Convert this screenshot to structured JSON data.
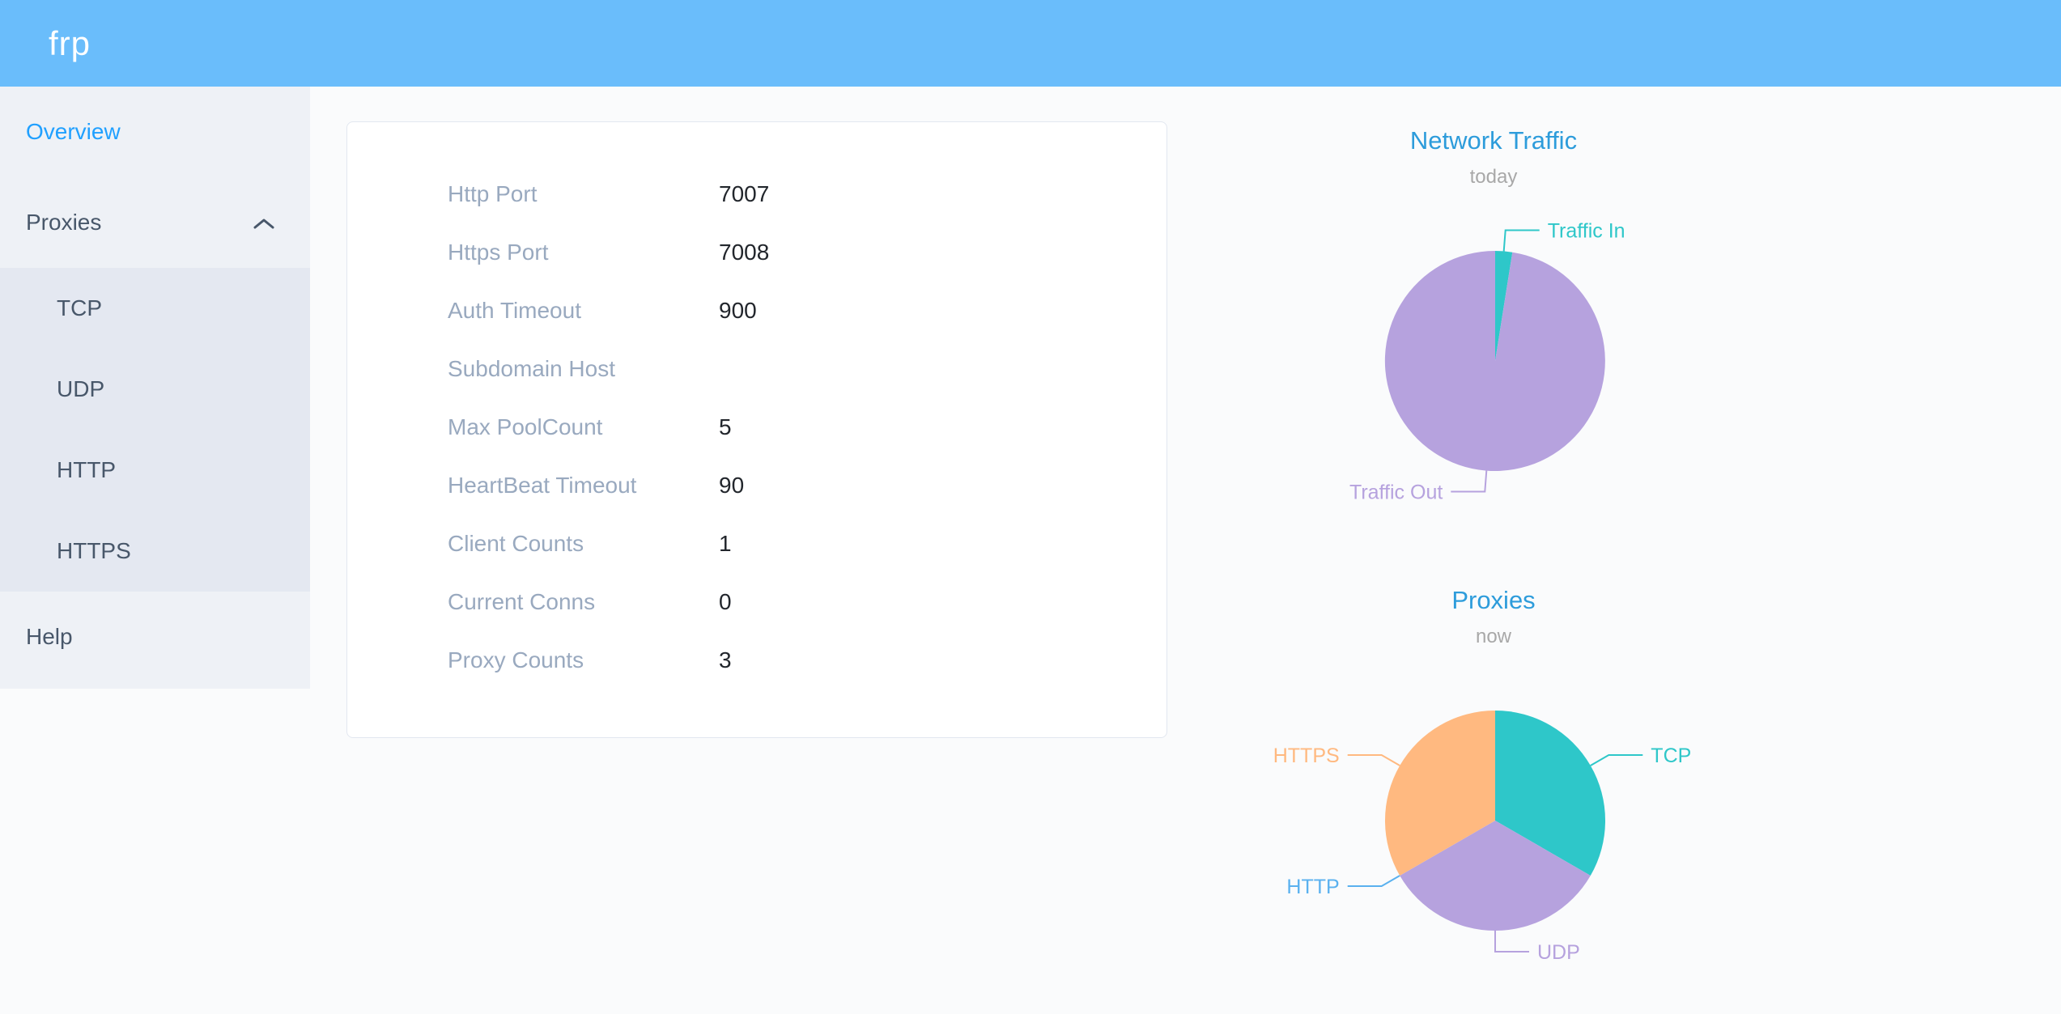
{
  "header": {
    "logo": "frp"
  },
  "sidebar": {
    "items": [
      {
        "label": "Overview",
        "active": true
      },
      {
        "label": "Proxies",
        "expanded": true,
        "children": [
          {
            "label": "TCP"
          },
          {
            "label": "UDP"
          },
          {
            "label": "HTTP"
          },
          {
            "label": "HTTPS"
          }
        ]
      },
      {
        "label": "Help"
      }
    ]
  },
  "overview": {
    "rows": [
      {
        "label": "Http Port",
        "value": "7007"
      },
      {
        "label": "Https Port",
        "value": "7008"
      },
      {
        "label": "Auth Timeout",
        "value": "900"
      },
      {
        "label": "Subdomain Host",
        "value": ""
      },
      {
        "label": "Max PoolCount",
        "value": "5"
      },
      {
        "label": "HeartBeat Timeout",
        "value": "90"
      },
      {
        "label": "Client Counts",
        "value": "1"
      },
      {
        "label": "Current Conns",
        "value": "0"
      },
      {
        "label": "Proxy Counts",
        "value": "3"
      }
    ]
  },
  "chart_data": [
    {
      "type": "pie",
      "title": "Network Traffic",
      "subtitle": "today",
      "legend": false,
      "label_position": "outside-with-leader-lines",
      "value_note": "percent share, estimated from slice angles",
      "series": [
        {
          "name": "Traffic In",
          "value": 2.5,
          "color": "#2ec7c9"
        },
        {
          "name": "Traffic Out",
          "value": 97.5,
          "color": "#b6a2de"
        }
      ]
    },
    {
      "type": "pie",
      "title": "Proxies",
      "subtitle": "now",
      "legend": false,
      "label_position": "outside-with-leader-lines",
      "value_note": "proxy counts per type (total = 3)",
      "series": [
        {
          "name": "TCP",
          "value": 1,
          "color": "#2ec7c9"
        },
        {
          "name": "UDP",
          "value": 1,
          "color": "#b6a2de"
        },
        {
          "name": "HTTP",
          "value": 0,
          "color": "#5ab1ef"
        },
        {
          "name": "HTTPS",
          "value": 1,
          "color": "#ffb980"
        }
      ]
    }
  ],
  "colors": {
    "header_bg": "#6abdfb",
    "sidebar_bg": "#eef1f6",
    "submenu_bg": "#e4e8f1",
    "sidebar_text": "#48576a",
    "active_item": "#20a0ff",
    "chart_title": "#2d9cdb",
    "chart_subtitle": "#a8a8a8",
    "card_label": "#99a9bf",
    "card_value": "#22262c"
  }
}
